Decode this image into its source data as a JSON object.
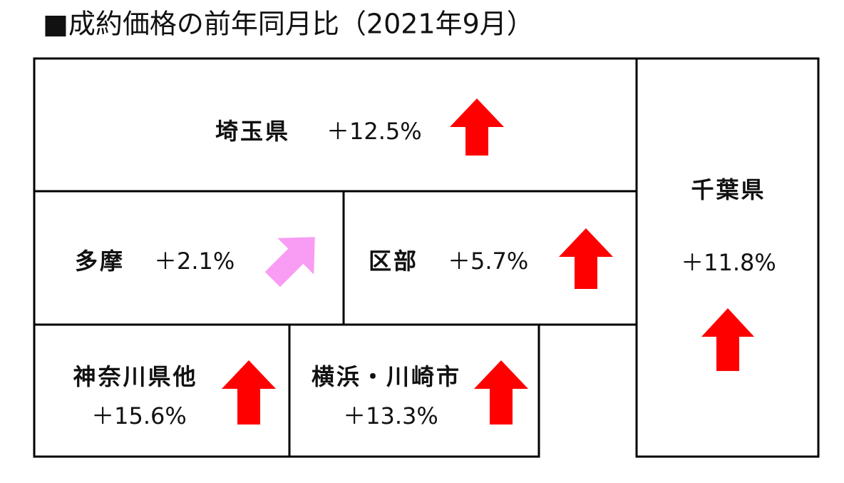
{
  "header": {
    "title": "■成約価格の前年同月比（2021年9月）"
  },
  "regions": [
    {
      "name": "埼玉県",
      "change": "＋12.5%"
    },
    {
      "name": "多摩",
      "change": "＋2.1%"
    },
    {
      "name": "区部",
      "change": "＋5.7%"
    },
    {
      "name": "千葉県",
      "change": "＋11.8%"
    },
    {
      "name": "神奈川県他",
      "change": "＋15.6%"
    },
    {
      "name": "横浜・川崎市",
      "change": "＋13.3%"
    }
  ]
}
